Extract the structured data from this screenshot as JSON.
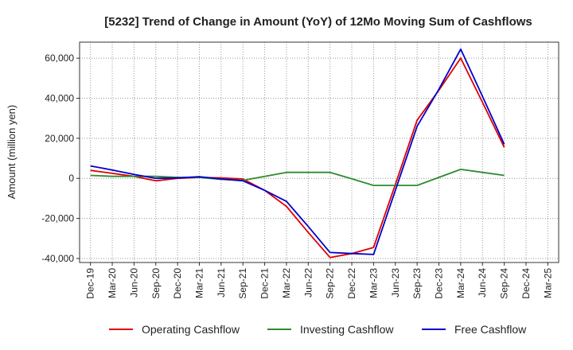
{
  "chart_data": {
    "type": "line",
    "title": "[5232]  Trend of Change in Amount (YoY) of 12Mo Moving Sum of Cashflows",
    "xlabel": "",
    "ylabel": "Amount (million yen)",
    "ylim": [
      -42000,
      68000
    ],
    "yticks": [
      -40000,
      -20000,
      0,
      20000,
      40000,
      60000
    ],
    "ytick_labels": [
      "-40,000",
      "-20,000",
      "0",
      "20,000",
      "40,000",
      "60,000"
    ],
    "categories": [
      "Dec-19",
      "Mar-20",
      "Jun-20",
      "Sep-20",
      "Dec-20",
      "Mar-21",
      "Jun-21",
      "Sep-21",
      "Dec-21",
      "Mar-22",
      "Jun-22",
      "Sep-22",
      "Dec-22",
      "Mar-23",
      "Jun-23",
      "Sep-23",
      "Dec-23",
      "Mar-24",
      "Jun-24",
      "Sep-24",
      "Dec-24",
      "Mar-25"
    ],
    "grid": true,
    "legend_position": "bottom",
    "series": [
      {
        "name": "Operating Cashflow",
        "color": "#e00000",
        "values": [
          4000,
          2500,
          1000,
          -1200,
          0,
          500,
          200,
          -300,
          -6000,
          -14000,
          -27000,
          -39500,
          -37500,
          -34500,
          -3000,
          29000,
          44000,
          60000,
          38000,
          15500,
          null,
          null
        ]
      },
      {
        "name": "Investing Cashflow",
        "color": "#2e8b2e",
        "values": [
          1500,
          1000,
          1000,
          1000,
          500,
          500,
          -500,
          -1000,
          1000,
          3000,
          3000,
          3000,
          -200,
          -3500,
          -3500,
          -3500,
          500,
          4500,
          3000,
          1500,
          null,
          null
        ]
      },
      {
        "name": "Free Cashflow",
        "color": "#0000cc",
        "values": [
          6200,
          4200,
          2000,
          0,
          200,
          800,
          -300,
          -1200,
          -6000,
          -11500,
          -24000,
          -37000,
          -37500,
          -38000,
          -6000,
          26000,
          44500,
          64500,
          41000,
          17000,
          null,
          null
        ]
      }
    ]
  }
}
